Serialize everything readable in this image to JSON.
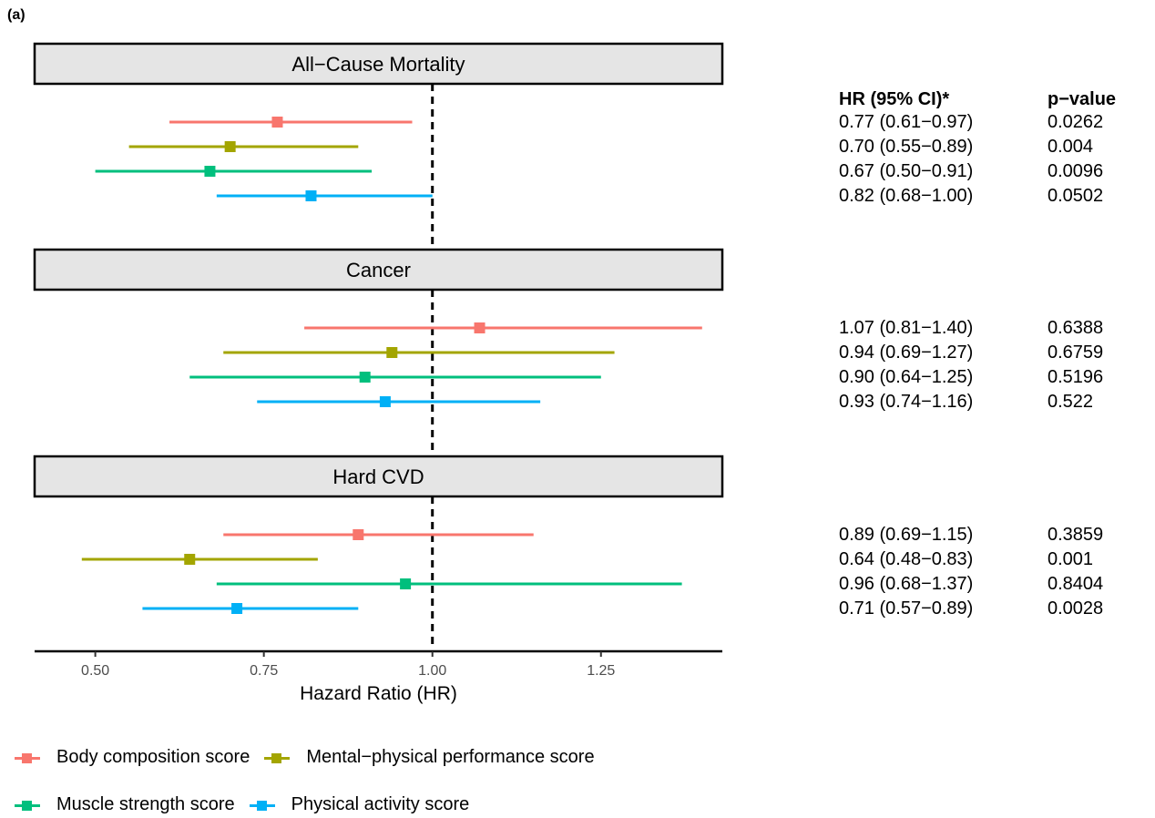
{
  "panel_label": "(a)",
  "chart_data": {
    "type": "forest",
    "xlabel": "Hazard Ratio (HR)",
    "xlim": [
      0.41,
      1.43
    ],
    "xticks": [
      0.5,
      0.75,
      1.0,
      1.25
    ],
    "xtick_labels": [
      "0.50",
      "0.75",
      "1.00",
      "1.25"
    ],
    "reference_line": 1.0,
    "series": [
      {
        "name": "Body composition score",
        "color": "#F8766D"
      },
      {
        "name": "Mental−physical performance score",
        "color": "#A3A500"
      },
      {
        "name": "Muscle strength score",
        "color": "#00BF7D"
      },
      {
        "name": "Physical activity score",
        "color": "#00B0F6"
      }
    ],
    "panels": [
      {
        "title": "All−Cause Mortality",
        "rows": [
          {
            "hr": 0.77,
            "lo": 0.61,
            "hi": 0.97,
            "ci_text": "0.77 (0.61−0.97)",
            "p": "0.0262"
          },
          {
            "hr": 0.7,
            "lo": 0.55,
            "hi": 0.89,
            "ci_text": "0.70 (0.55−0.89)",
            "p": "0.004"
          },
          {
            "hr": 0.67,
            "lo": 0.5,
            "hi": 0.91,
            "ci_text": "0.67 (0.50−0.91)",
            "p": "0.0096"
          },
          {
            "hr": 0.82,
            "lo": 0.68,
            "hi": 1.0,
            "ci_text": "0.82 (0.68−1.00)",
            "p": "0.0502"
          }
        ]
      },
      {
        "title": "Cancer",
        "rows": [
          {
            "hr": 1.07,
            "lo": 0.81,
            "hi": 1.4,
            "ci_text": "1.07 (0.81−1.40)",
            "p": "0.6388"
          },
          {
            "hr": 0.94,
            "lo": 0.69,
            "hi": 1.27,
            "ci_text": "0.94 (0.69−1.27)",
            "p": "0.6759"
          },
          {
            "hr": 0.9,
            "lo": 0.64,
            "hi": 1.25,
            "ci_text": "0.90 (0.64−1.25)",
            "p": "0.5196"
          },
          {
            "hr": 0.93,
            "lo": 0.74,
            "hi": 1.16,
            "ci_text": "0.93 (0.74−1.16)",
            "p": "0.522"
          }
        ]
      },
      {
        "title": "Hard CVD",
        "rows": [
          {
            "hr": 0.89,
            "lo": 0.69,
            "hi": 1.15,
            "ci_text": "0.89 (0.69−1.15)",
            "p": "0.3859"
          },
          {
            "hr": 0.64,
            "lo": 0.48,
            "hi": 0.83,
            "ci_text": "0.64 (0.48−0.83)",
            "p": "0.001"
          },
          {
            "hr": 0.96,
            "lo": 0.68,
            "hi": 1.37,
            "ci_text": "0.96 (0.68−1.37)",
            "p": "0.8404"
          },
          {
            "hr": 0.71,
            "lo": 0.57,
            "hi": 0.89,
            "ci_text": "0.71 (0.57−0.89)",
            "p": "0.0028"
          }
        ]
      }
    ]
  },
  "table": {
    "hr_header": "HR (95% CI)*",
    "p_header": "p−value"
  }
}
